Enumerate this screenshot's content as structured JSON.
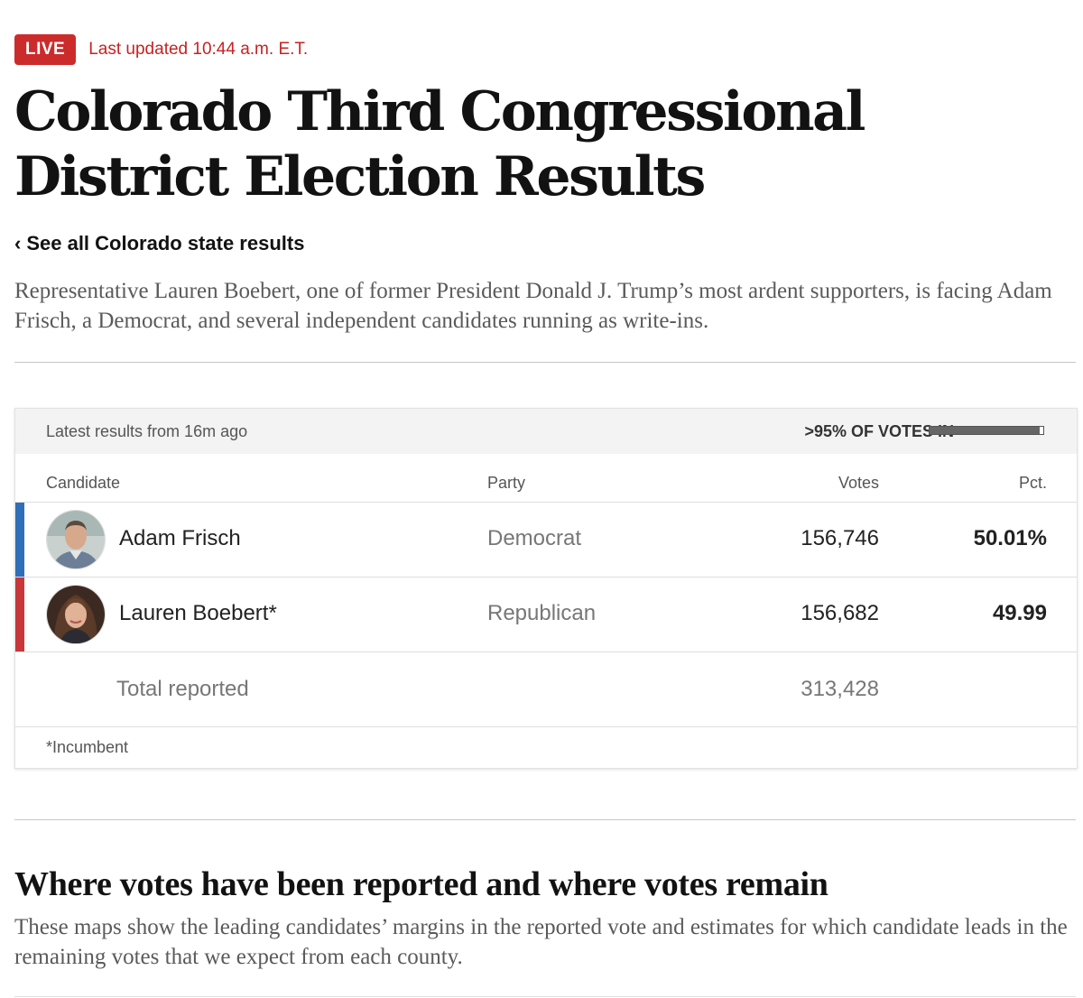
{
  "header": {
    "live_label": "LIVE",
    "last_updated": "Last updated 10:44 a.m. E.T."
  },
  "headline": "Colorado Third Congressional District Election Results",
  "back_link": {
    "chevron": "‹",
    "label": "See all Colorado state results"
  },
  "dek": "Representative Lauren Boebert, one of former President Donald J. Trump’s most ardent supporters, is facing Adam Frisch, a Democrat, and several independent candidates running as write-ins.",
  "results": {
    "latest": "Latest results from 16m ago",
    "votes_in_label": ">95% OF VOTES IN",
    "votes_in_fraction": 0.97,
    "columns": {
      "candidate": "Candidate",
      "party": "Party",
      "votes": "Votes",
      "pct": "Pct."
    },
    "candidates": [
      {
        "name": "Adam Frisch",
        "party": "Democrat",
        "votes": "156,746",
        "pct": "50.01%",
        "color": "#2f6fb7",
        "avatar": "candidate-photo"
      },
      {
        "name": "Lauren Boebert*",
        "party": "Republican",
        "votes": "156,682",
        "pct": "49.99",
        "color": "#c8373a",
        "avatar": "candidate-photo"
      }
    ],
    "total_label": "Total reported",
    "total_votes": "313,428",
    "footnote": "*Incumbent"
  },
  "section": {
    "title": "Where votes have been reported and where votes remain",
    "dek": "These maps show the leading candidates’ margins in the reported vote and estimates for which candidate leads in the remaining votes that we expect from each county."
  }
}
